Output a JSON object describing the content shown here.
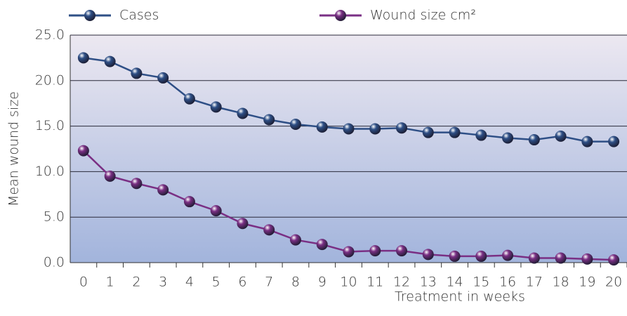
{
  "chart_data": {
    "type": "line",
    "x_label": "Treatment in weeks",
    "y_label": "Mean wound size",
    "categories": [
      "0",
      "1",
      "2",
      "3",
      "4",
      "5",
      "6",
      "7",
      "8",
      "9",
      "10",
      "11",
      "12",
      "13",
      "14",
      "15",
      "16",
      "17",
      "18",
      "19",
      "20"
    ],
    "series": [
      {
        "name": "Cases",
        "color": "#2e4f86",
        "values": [
          22.5,
          22.1,
          20.8,
          20.3,
          18.0,
          17.1,
          16.4,
          15.7,
          15.2,
          14.9,
          14.7,
          14.7,
          14.8,
          14.3,
          14.3,
          14.0,
          13.7,
          13.5,
          13.9,
          13.3,
          13.3
        ]
      },
      {
        "name": "Wound size cm²",
        "color": "#7a2f84",
        "values": [
          12.3,
          9.5,
          8.7,
          8.0,
          6.7,
          5.7,
          4.3,
          3.6,
          2.5,
          2.0,
          1.2,
          1.3,
          1.3,
          0.9,
          0.7,
          0.7,
          0.8,
          0.5,
          0.5,
          0.4,
          0.3
        ]
      }
    ],
    "ylim": [
      0,
      25
    ],
    "yticks": [
      {
        "value": 0,
        "label": "0.0"
      },
      {
        "value": 5,
        "label": "5.0"
      },
      {
        "value": 10,
        "label": "10.0"
      },
      {
        "value": 15,
        "label": "15.0"
      },
      {
        "value": 20,
        "label": "20.0"
      },
      {
        "value": 25,
        "label": "25.0"
      }
    ],
    "grid": true
  }
}
